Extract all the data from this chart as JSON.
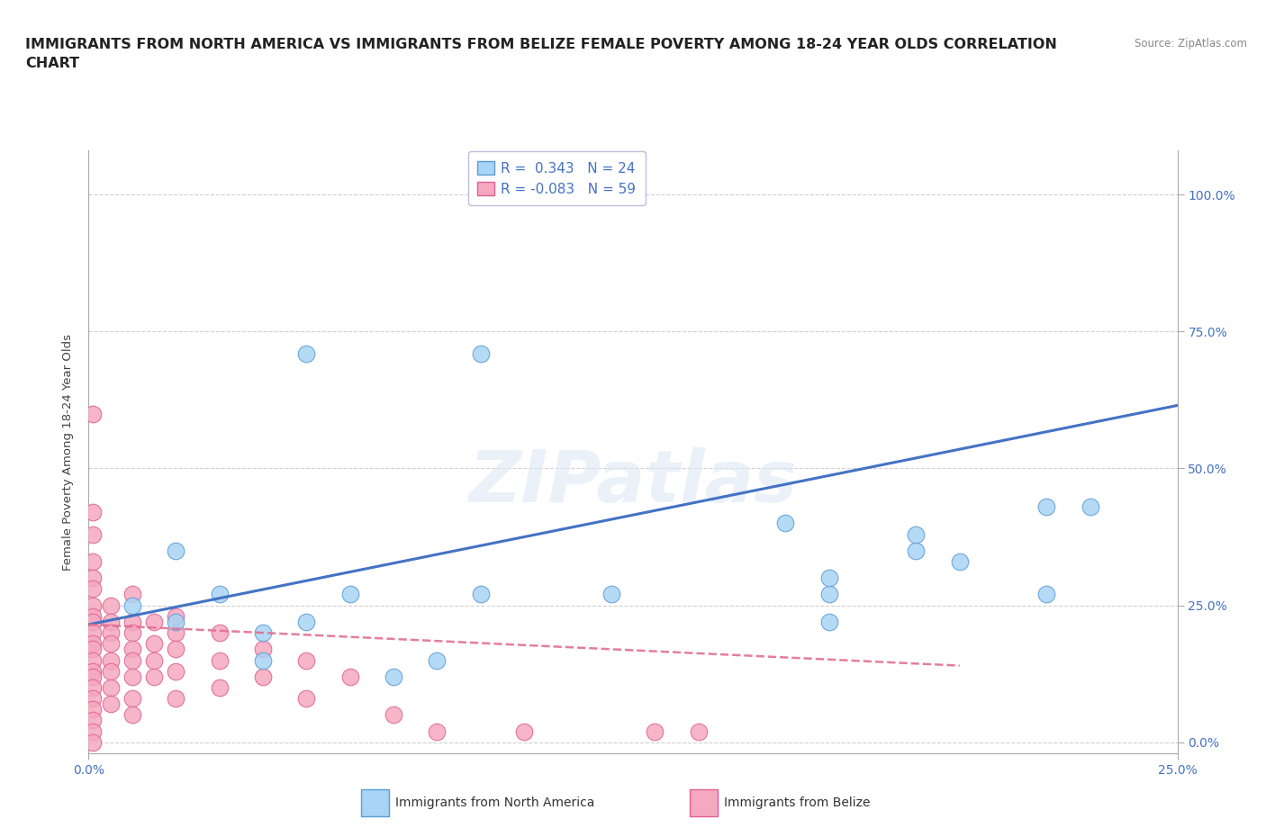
{
  "title": "IMMIGRANTS FROM NORTH AMERICA VS IMMIGRANTS FROM BELIZE FEMALE POVERTY AMONG 18-24 YEAR OLDS CORRELATION\nCHART",
  "source_text": "Source: ZipAtlas.com",
  "ylabel": "Female Poverty Among 18-24 Year Olds",
  "xlim": [
    0.0,
    0.25
  ],
  "ylim": [
    -0.02,
    1.08
  ],
  "yticks": [
    0.0,
    0.25,
    0.5,
    0.75,
    1.0
  ],
  "xticks": [
    0.0,
    0.25
  ],
  "yticklabels": [
    "",
    "",
    "",
    "",
    ""
  ],
  "right_yticklabels": [
    "0.0%",
    "25.0%",
    "50.0%",
    "75.0%",
    "100.0%"
  ],
  "xticklabels": [
    "0.0%",
    "25.0%"
  ],
  "watermark": "ZIPatlas",
  "blue_R": 0.343,
  "blue_N": 24,
  "pink_R": -0.083,
  "pink_N": 59,
  "blue_fill": "#a8d4f5",
  "pink_fill": "#f5a8c0",
  "blue_edge": "#5b9bd5",
  "pink_edge": "#e06090",
  "blue_line_color": "#4472c4",
  "pink_line_color": "#e07090",
  "blue_scatter": [
    [
      0.05,
      0.71
    ],
    [
      0.09,
      0.71
    ],
    [
      0.02,
      0.35
    ],
    [
      0.09,
      0.27
    ],
    [
      0.12,
      0.27
    ],
    [
      0.16,
      0.4
    ],
    [
      0.17,
      0.27
    ],
    [
      0.17,
      0.22
    ],
    [
      0.17,
      0.3
    ],
    [
      0.19,
      0.35
    ],
    [
      0.2,
      0.33
    ],
    [
      0.22,
      0.27
    ],
    [
      0.01,
      0.25
    ],
    [
      0.02,
      0.22
    ],
    [
      0.03,
      0.27
    ],
    [
      0.04,
      0.2
    ],
    [
      0.04,
      0.15
    ],
    [
      0.05,
      0.22
    ],
    [
      0.06,
      0.27
    ],
    [
      0.07,
      0.12
    ],
    [
      0.08,
      0.15
    ],
    [
      0.22,
      0.43
    ],
    [
      0.19,
      0.38
    ],
    [
      0.23,
      0.43
    ]
  ],
  "pink_scatter": [
    [
      0.001,
      0.6
    ],
    [
      0.001,
      0.42
    ],
    [
      0.001,
      0.38
    ],
    [
      0.001,
      0.33
    ],
    [
      0.001,
      0.3
    ],
    [
      0.001,
      0.28
    ],
    [
      0.001,
      0.25
    ],
    [
      0.001,
      0.23
    ],
    [
      0.001,
      0.22
    ],
    [
      0.001,
      0.2
    ],
    [
      0.001,
      0.18
    ],
    [
      0.001,
      0.17
    ],
    [
      0.001,
      0.15
    ],
    [
      0.001,
      0.13
    ],
    [
      0.001,
      0.12
    ],
    [
      0.001,
      0.1
    ],
    [
      0.001,
      0.08
    ],
    [
      0.001,
      0.06
    ],
    [
      0.001,
      0.04
    ],
    [
      0.001,
      0.02
    ],
    [
      0.001,
      0.0
    ],
    [
      0.005,
      0.25
    ],
    [
      0.005,
      0.22
    ],
    [
      0.005,
      0.2
    ],
    [
      0.005,
      0.18
    ],
    [
      0.005,
      0.15
    ],
    [
      0.005,
      0.13
    ],
    [
      0.005,
      0.1
    ],
    [
      0.005,
      0.07
    ],
    [
      0.01,
      0.27
    ],
    [
      0.01,
      0.22
    ],
    [
      0.01,
      0.2
    ],
    [
      0.01,
      0.17
    ],
    [
      0.01,
      0.15
    ],
    [
      0.01,
      0.12
    ],
    [
      0.01,
      0.08
    ],
    [
      0.01,
      0.05
    ],
    [
      0.015,
      0.22
    ],
    [
      0.015,
      0.18
    ],
    [
      0.015,
      0.15
    ],
    [
      0.015,
      0.12
    ],
    [
      0.02,
      0.23
    ],
    [
      0.02,
      0.2
    ],
    [
      0.02,
      0.17
    ],
    [
      0.02,
      0.13
    ],
    [
      0.02,
      0.08
    ],
    [
      0.03,
      0.2
    ],
    [
      0.03,
      0.15
    ],
    [
      0.03,
      0.1
    ],
    [
      0.04,
      0.17
    ],
    [
      0.04,
      0.12
    ],
    [
      0.05,
      0.15
    ],
    [
      0.05,
      0.08
    ],
    [
      0.06,
      0.12
    ],
    [
      0.07,
      0.05
    ],
    [
      0.08,
      0.02
    ],
    [
      0.1,
      0.02
    ],
    [
      0.13,
      0.02
    ],
    [
      0.14,
      0.02
    ]
  ],
  "blue_line_x": [
    0.0,
    0.25
  ],
  "blue_line_y": [
    0.215,
    0.615
  ],
  "pink_line_x": [
    0.0,
    0.2
  ],
  "pink_line_y": [
    0.215,
    0.14
  ],
  "background_color": "#ffffff",
  "grid_color": "#d0d0d0",
  "title_color": "#222222",
  "source_color": "#888888",
  "tick_color": "#4472c4",
  "ylabel_color": "#444444",
  "title_fontsize": 11.5,
  "axis_label_fontsize": 9.5,
  "tick_fontsize": 10
}
